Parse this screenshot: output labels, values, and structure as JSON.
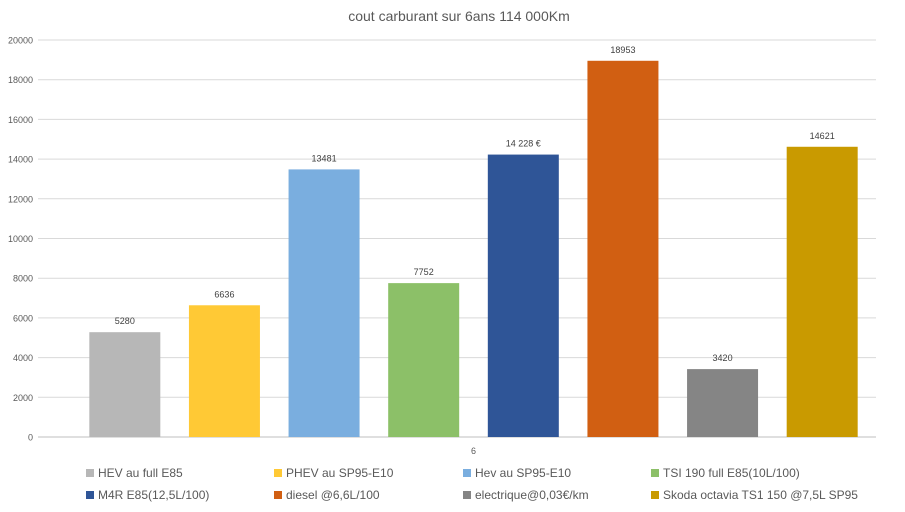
{
  "chart_data": {
    "type": "bar",
    "title": "cout carburant sur 6ans 114 000Km",
    "categories": [
      "6"
    ],
    "ylim": [
      0,
      20000
    ],
    "yticks": [
      0,
      2000,
      4000,
      6000,
      8000,
      10000,
      12000,
      14000,
      16000,
      18000,
      20000
    ],
    "grid": true,
    "legend_position": "bottom",
    "series": [
      {
        "name": "HEV au full E85",
        "values": [
          5280
        ],
        "label": "5280",
        "color": "#b7b7b7"
      },
      {
        "name": "PHEV au SP95-E10",
        "values": [
          6636
        ],
        "label": "6636",
        "color": "#ffc935"
      },
      {
        "name": "Hev au SP95-E10",
        "values": [
          13481
        ],
        "label": "13481",
        "color": "#7aaedf"
      },
      {
        "name": "TSI 190 full E85(10L/100)",
        "values": [
          7752
        ],
        "label": "7752",
        "color": "#8cc068"
      },
      {
        "name": "M4R E85(12,5L/100)",
        "values": [
          14228
        ],
        "label": "14 228 €",
        "color": "#2f5597"
      },
      {
        "name": "diesel @6,6L/100",
        "values": [
          18953
        ],
        "label": "18953",
        "color": "#d15f12"
      },
      {
        "name": "electrique@0,03€/km",
        "values": [
          3420
        ],
        "label": "3420",
        "color": "#858585"
      },
      {
        "name": "Skoda octavia TS1 150 @7,5L SP95",
        "values": [
          14621
        ],
        "label": "14621",
        "color": "#c99a00"
      }
    ]
  }
}
